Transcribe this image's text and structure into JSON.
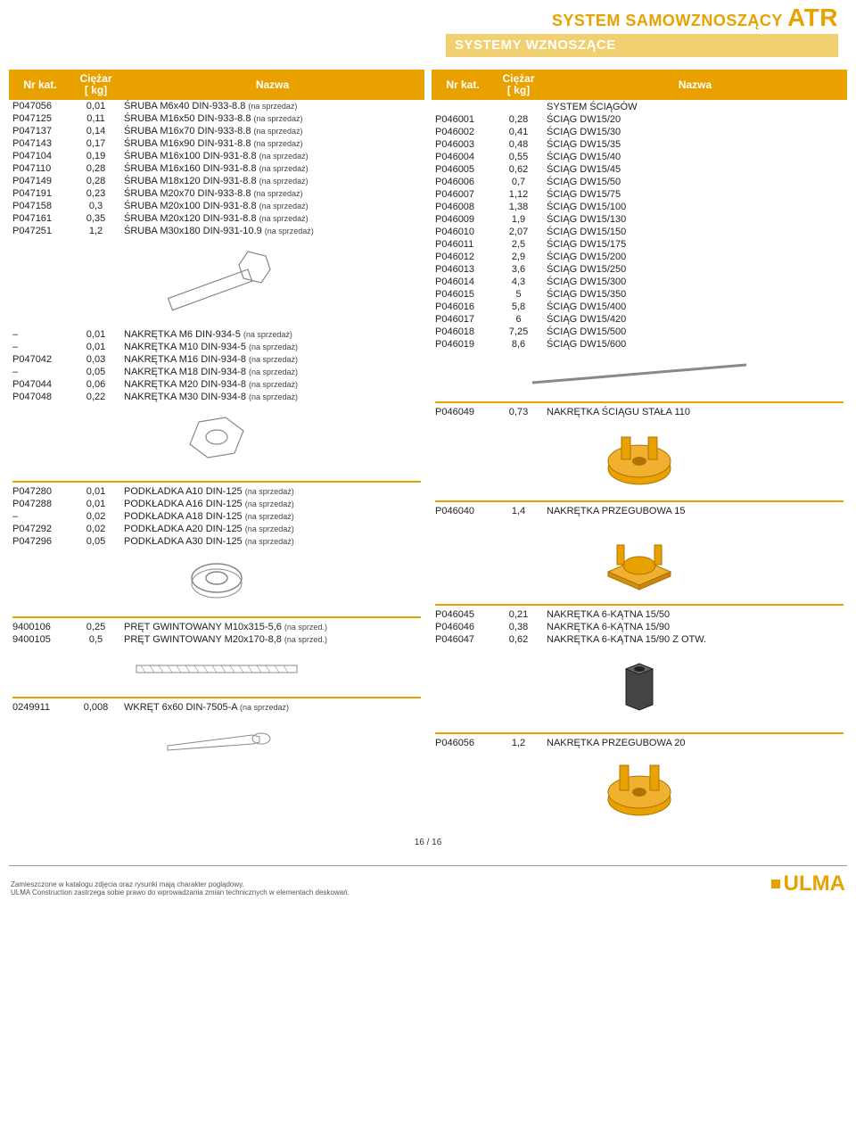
{
  "header": {
    "system_line": "SYSTEM SAMOWZNOSZĄCY",
    "system_big": "ATR",
    "subsystem": "SYSTEMY WZNOSZĄCE"
  },
  "columns": {
    "nr": "Nr kat.",
    "wt_l1": "Ciężar",
    "wt_l2": "[ kg]",
    "nz": "Nazwa"
  },
  "suffix_sale": "(na sprzedaż)",
  "suffix_sale_short": "(na sprzed.)",
  "left": {
    "bolts": [
      {
        "nr": "P047056",
        "wt": "0,01",
        "nz": "ŚRUBA M6x40 DIN-933-8.8"
      },
      {
        "nr": "P047125",
        "wt": "0,11",
        "nz": "ŚRUBA M16x50 DIN-933-8.8"
      },
      {
        "nr": "P047137",
        "wt": "0,14",
        "nz": "ŚRUBA M16x70 DIN-933-8.8"
      },
      {
        "nr": "P047143",
        "wt": "0,17",
        "nz": "ŚRUBA M16x90 DIN-931-8.8"
      },
      {
        "nr": "P047104",
        "wt": "0,19",
        "nz": "ŚRUBA M16x100 DIN-931-8.8"
      },
      {
        "nr": "P047110",
        "wt": "0,28",
        "nz": "ŚRUBA M16x160 DIN-931-8.8"
      },
      {
        "nr": "P047149",
        "wt": "0,28",
        "nz": "ŚRUBA M18x120 DIN-931-8.8"
      },
      {
        "nr": "P047191",
        "wt": "0,23",
        "nz": "ŚRUBA M20x70 DIN-933-8.8"
      },
      {
        "nr": "P047158",
        "wt": "0,3",
        "nz": "ŚRUBA M20x100 DIN-931-8.8"
      },
      {
        "nr": "P047161",
        "wt": "0,35",
        "nz": "ŚRUBA M20x120 DIN-931-8.8"
      },
      {
        "nr": "P047251",
        "wt": "1,2",
        "nz": "ŚRUBA M30x180 DIN-931-10.9"
      }
    ],
    "nuts": [
      {
        "nr": "–",
        "wt": "0,01",
        "nz": "NAKRĘTKA M6 DIN-934-5"
      },
      {
        "nr": "–",
        "wt": "0,01",
        "nz": "NAKRĘTKA M10 DIN-934-5"
      },
      {
        "nr": "P047042",
        "wt": "0,03",
        "nz": "NAKRĘTKA M16 DIN-934-8"
      },
      {
        "nr": "–",
        "wt": "0,05",
        "nz": "NAKRĘTKA M18 DIN-934-8"
      },
      {
        "nr": "P047044",
        "wt": "0,06",
        "nz": "NAKRĘTKA M20 DIN-934-8"
      },
      {
        "nr": "P047048",
        "wt": "0,22",
        "nz": "NAKRĘTKA M30 DIN-934-8"
      }
    ],
    "washers": [
      {
        "nr": "P047280",
        "wt": "0,01",
        "nz": "PODKŁADKA A10 DIN-125"
      },
      {
        "nr": "P047288",
        "wt": "0,01",
        "nz": "PODKŁADKA A16 DIN-125"
      },
      {
        "nr": "–",
        "wt": "0,02",
        "nz": "PODKŁADKA A18 DIN-125"
      },
      {
        "nr": "P047292",
        "wt": "0,02",
        "nz": "PODKŁADKA A20 DIN-125"
      },
      {
        "nr": "P047296",
        "wt": "0,05",
        "nz": "PODKŁADKA A30 DIN-125"
      }
    ],
    "rods": [
      {
        "nr": "9400106",
        "wt": "0,25",
        "nz": "PRĘT GWINTOWANY M10x315-5,6"
      },
      {
        "nr": "9400105",
        "wt": "0,5",
        "nz": "PRĘT GWINTOWANY M20x170-8,8"
      }
    ],
    "screw": [
      {
        "nr": "0249911",
        "wt": "0,008",
        "nz": "WKRĘT 6x60 DIN-7505-A"
      }
    ]
  },
  "right": {
    "ties_header": "SYSTEM ŚCIĄGÓW",
    "ties": [
      {
        "nr": "P046001",
        "wt": "0,28",
        "nz": "ŚCIĄG DW15/20"
      },
      {
        "nr": "P046002",
        "wt": "0,41",
        "nz": "ŚCIĄG DW15/30"
      },
      {
        "nr": "P046003",
        "wt": "0,48",
        "nz": "ŚCIĄG DW15/35"
      },
      {
        "nr": "P046004",
        "wt": "0,55",
        "nz": "ŚCIĄG DW15/40"
      },
      {
        "nr": "P046005",
        "wt": "0,62",
        "nz": "ŚCIĄG DW15/45"
      },
      {
        "nr": "P046006",
        "wt": "0,7",
        "nz": "ŚCIĄG DW15/50"
      },
      {
        "nr": "P046007",
        "wt": "1,12",
        "nz": "ŚCIĄG DW15/75"
      },
      {
        "nr": "P046008",
        "wt": "1,38",
        "nz": "ŚCIĄG DW15/100"
      },
      {
        "nr": "P046009",
        "wt": "1,9",
        "nz": "ŚCIĄG DW15/130"
      },
      {
        "nr": "P046010",
        "wt": "2,07",
        "nz": "ŚCIĄG DW15/150"
      },
      {
        "nr": "P046011",
        "wt": "2,5",
        "nz": "ŚCIĄG DW15/175"
      },
      {
        "nr": "P046012",
        "wt": "2,9",
        "nz": "ŚCIĄG DW15/200"
      },
      {
        "nr": "P046013",
        "wt": "3,6",
        "nz": "ŚCIĄG DW15/250"
      },
      {
        "nr": "P046014",
        "wt": "4,3",
        "nz": "ŚCIĄG DW15/300"
      },
      {
        "nr": "P046015",
        "wt": "5",
        "nz": "ŚCIĄG DW15/350"
      },
      {
        "nr": "P046016",
        "wt": "5,8",
        "nz": "ŚCIĄG DW15/400"
      },
      {
        "nr": "P046017",
        "wt": "6",
        "nz": "ŚCIĄG DW15/420"
      },
      {
        "nr": "P046018",
        "wt": "7,25",
        "nz": "ŚCIĄG DW15/500"
      },
      {
        "nr": "P046019",
        "wt": "8,6",
        "nz": "ŚCIĄG DW15/600"
      }
    ],
    "fixed_nut": {
      "nr": "P046049",
      "wt": "0,73",
      "nz": "NAKRĘTKA ŚCIĄGU STAŁA 110"
    },
    "swivel15": {
      "nr": "P046040",
      "wt": "1,4",
      "nz": "NAKRĘTKA PRZEGUBOWA 15"
    },
    "hex_nuts": [
      {
        "nr": "P046045",
        "wt": "0,21",
        "nz": "NAKRĘTKA 6-KĄTNA 15/50"
      },
      {
        "nr": "P046046",
        "wt": "0,38",
        "nz": "NAKRĘTKA 6-KĄTNA 15/90"
      },
      {
        "nr": "P046047",
        "wt": "0,62",
        "nz": "NAKRĘTKA 6-KĄTNA 15/90 Z OTW."
      }
    ],
    "swivel20": {
      "nr": "P046056",
      "wt": "1,2",
      "nz": "NAKRĘTKA PRZEGUBOWA 20"
    }
  },
  "footer": {
    "page": "16 / 16",
    "note1": "Zamieszczone w katalogu zdjęcia oraz rysunki mają charakter poglądowy.",
    "note2": "ULMA Construction zastrzega sobie prawo do wprowadzania zmian technicznych w elementach deskowań.",
    "brand": "ULMA"
  },
  "colors": {
    "accent": "#e9a100",
    "bar": "#f0d070",
    "text": "#222222",
    "row_border": "#e9a100"
  }
}
